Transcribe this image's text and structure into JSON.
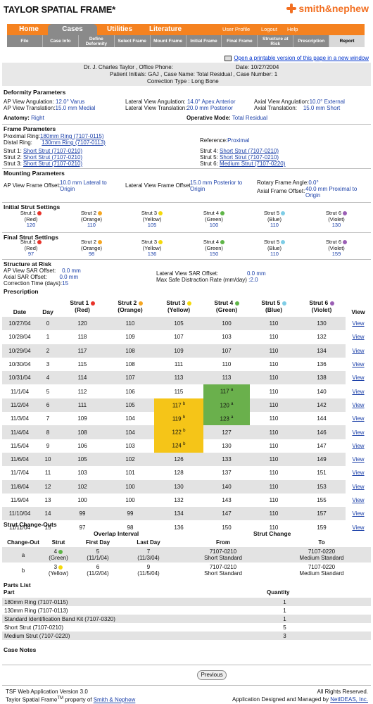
{
  "app_title": "TAYLOR SPATIAL FRAME*",
  "brand": "smith&nephew",
  "nav_tabs": [
    "Home",
    "Cases",
    "Utilities",
    "Literature"
  ],
  "nav_utils": [
    "User Profile",
    "Logout",
    "Help"
  ],
  "subnav": [
    "File",
    "Case Info",
    "Define Deformity",
    "Select Frame",
    "Mount Frame",
    "Initial Frame",
    "Final Frame",
    "Structure at Risk",
    "Prescription",
    "Report"
  ],
  "print_link": "Open a printable version of this page in a new window",
  "patient": {
    "doctor": "Dr. J. Charles Taylor , Office Phone:",
    "date": "Date: 10/27/2004",
    "initials": "Patient Initials:  GAJ , Case Name: Total Residual , Case Number: 1",
    "correction": "Correction Type : Long Bone"
  },
  "deformity": {
    "heading": "Deformity Parameters",
    "ap_ang_label": "AP View Angulation:",
    "ap_ang": "12.0° Varus",
    "lat_ang_label": "Lateral View Angulation:",
    "lat_ang": "14.0° Apex Anterior",
    "ax_ang_label": "Axial View Angulation:",
    "ax_ang": "10.0° External",
    "ap_tr_label": "AP View Translation:",
    "ap_tr": "15.0 mm Medial",
    "lat_tr_label": "Lateral View Translation:",
    "lat_tr": "20.0 mm Posterior",
    "ax_tr_label": "Axial Translation:",
    "ax_tr": "15.0 mm Short",
    "anatomy_label": "Anatomy:",
    "anatomy": "Right",
    "mode_label": "Operative Mode:",
    "mode": "Total Residual"
  },
  "frame": {
    "heading": "Frame Parameters",
    "prox_label": "Proximal Ring:",
    "prox": "180mm Ring (7107-0115)",
    "dist_label": "Distal Ring:",
    "dist": "130mm Ring (7107-0113)",
    "ref_label": "Reference:",
    "ref": "Proximal",
    "struts": [
      {
        "label": "Strut 1:",
        "value": "Short Strut (7107-0210)"
      },
      {
        "label": "Strut 2:",
        "value": "Short Strut (7107-0210)"
      },
      {
        "label": "Strut 3:",
        "value": "Short Strut (7107-0210)"
      },
      {
        "label": "Strut 4:",
        "value": "Short Strut (7107-0210)"
      },
      {
        "label": "Strut 5:",
        "value": "Short Strut (7107-0210)"
      },
      {
        "label": "Strut 6:",
        "value": "Medium Strut (7107-0220)"
      }
    ]
  },
  "mounting": {
    "heading": "Mounting Parameters",
    "ap_label": "AP View Frame Offset:",
    "ap": "10.0 mm Lateral to Origin",
    "lat_label": "Lateral View Frame Offset:",
    "lat": "15.0 mm Posterior to Origin",
    "rot_label": "Rotary Frame Angle:",
    "rot": "0.0°",
    "ax_label": "Axial Frame Offset:",
    "ax": "40.0 mm Proximal to Origin"
  },
  "strut_colors": [
    "#e8332a",
    "#f5a623",
    "#f5d90a",
    "#5fb548",
    "#7fcde6",
    "#9b5fb5"
  ],
  "initial": {
    "heading": "Initial Strut Settings",
    "struts": [
      {
        "name": "Strut 1",
        "color": "(Red)",
        "value": "120"
      },
      {
        "name": "Strut 2",
        "color": "(Orange)",
        "value": "110"
      },
      {
        "name": "Strut 3",
        "color": "(Yellow)",
        "value": "105"
      },
      {
        "name": "Strut 4",
        "color": "(Green)",
        "value": "100"
      },
      {
        "name": "Strut 5",
        "color": "(Blue)",
        "value": "110"
      },
      {
        "name": "Strut 6",
        "color": "(Violet)",
        "value": "130"
      }
    ]
  },
  "final": {
    "heading": "Final Strut Settings",
    "struts": [
      {
        "name": "Strut 1",
        "color": "(Red)",
        "value": "97"
      },
      {
        "name": "Strut 2",
        "color": "(Orange)",
        "value": "98"
      },
      {
        "name": "Strut 3",
        "color": "(Yellow)",
        "value": "136"
      },
      {
        "name": "Strut 4",
        "color": "(Green)",
        "value": "150"
      },
      {
        "name": "Strut 5",
        "color": "(Blue)",
        "value": "110"
      },
      {
        "name": "Strut 6",
        "color": "(Violet)",
        "value": "159"
      }
    ]
  },
  "risk": {
    "heading": "Structure at Risk",
    "ap_label": "AP View SAR Offset:",
    "ap": "0.0 mm",
    "ax_label": "Axial SAR Offset:",
    "ax": "0.0 mm",
    "time_label": "Correction Time (days):",
    "time": "15",
    "lat_label": "Lateral View SAR Offset:",
    "lat": "0.0 mm",
    "rate_label": "Max Safe Distraction Rate (mm/day)",
    "rate": ":2.0"
  },
  "prescription": {
    "heading": "Prescription",
    "headers": [
      "Date",
      "Day",
      "Strut 1",
      "Strut 2",
      "Strut 3",
      "Strut 4",
      "Strut 5",
      "Strut 6",
      "View"
    ],
    "subheaders": [
      "",
      "",
      "(Red)",
      "(Orange)",
      "(Yellow)",
      "(Green)",
      "(Blue)",
      "(Violet)",
      ""
    ],
    "view_label": "View",
    "rows": [
      {
        "date": "10/27/04",
        "day": "0",
        "s": [
          "120",
          "110",
          "105",
          "100",
          "110",
          "130"
        ]
      },
      {
        "date": "10/28/04",
        "day": "1",
        "s": [
          "118",
          "109",
          "107",
          "103",
          "110",
          "132"
        ]
      },
      {
        "date": "10/29/04",
        "day": "2",
        "s": [
          "117",
          "108",
          "109",
          "107",
          "110",
          "134"
        ]
      },
      {
        "date": "10/30/04",
        "day": "3",
        "s": [
          "115",
          "108",
          "111",
          "110",
          "110",
          "136"
        ]
      },
      {
        "date": "10/31/04",
        "day": "4",
        "s": [
          "114",
          "107",
          "113",
          "113",
          "110",
          "138"
        ]
      },
      {
        "date": "11/1/04",
        "day": "5",
        "s": [
          "112",
          "106",
          "115",
          "117",
          "110",
          "140"
        ],
        "hl": {
          "3": [
            "g",
            "a"
          ]
        }
      },
      {
        "date": "11/2/04",
        "day": "6",
        "s": [
          "111",
          "105",
          "117",
          "120",
          "110",
          "142"
        ],
        "hl": {
          "2": [
            "y",
            "b"
          ],
          "3": [
            "g",
            "a"
          ]
        }
      },
      {
        "date": "11/3/04",
        "day": "7",
        "s": [
          "109",
          "104",
          "119",
          "123",
          "110",
          "144"
        ],
        "hl": {
          "2": [
            "y",
            "b"
          ],
          "3": [
            "g",
            "a"
          ]
        }
      },
      {
        "date": "11/4/04",
        "day": "8",
        "s": [
          "108",
          "104",
          "122",
          "127",
          "110",
          "146"
        ],
        "hl": {
          "2": [
            "y",
            "b"
          ]
        }
      },
      {
        "date": "11/5/04",
        "day": "9",
        "s": [
          "106",
          "103",
          "124",
          "130",
          "110",
          "147"
        ],
        "hl": {
          "2": [
            "y",
            "b"
          ]
        }
      },
      {
        "date": "11/6/04",
        "day": "10",
        "s": [
          "105",
          "102",
          "126",
          "133",
          "110",
          "149"
        ]
      },
      {
        "date": "11/7/04",
        "day": "11",
        "s": [
          "103",
          "101",
          "128",
          "137",
          "110",
          "151"
        ]
      },
      {
        "date": "11/8/04",
        "day": "12",
        "s": [
          "102",
          "100",
          "130",
          "140",
          "110",
          "153"
        ]
      },
      {
        "date": "11/9/04",
        "day": "13",
        "s": [
          "100",
          "100",
          "132",
          "143",
          "110",
          "155"
        ]
      },
      {
        "date": "11/10/04",
        "day": "14",
        "s": [
          "99",
          "99",
          "134",
          "147",
          "110",
          "157"
        ]
      },
      {
        "date": "11/11/04",
        "day": "15",
        "s": [
          "97",
          "98",
          "136",
          "150",
          "110",
          "159"
        ]
      }
    ]
  },
  "changeouts": {
    "heading": "Strut Change-Outs",
    "overlap": "Overlap Interval",
    "strut_change": "Strut Change",
    "cols": [
      "Change-Out",
      "Strut",
      "First Day",
      "Last Day",
      "From",
      "To"
    ],
    "rows": [
      {
        "id": "a",
        "strut": "4",
        "color": "(Green)",
        "first": "5",
        "first_d": "(11/1/04)",
        "last": "7",
        "last_d": "(11/3/04)",
        "from": "7107-0210",
        "from_d": "Short Standard",
        "to": "7107-0220",
        "to_d": "Medium Standard"
      },
      {
        "id": "b",
        "strut": "3",
        "color": "(Yellow)",
        "first": "6",
        "first_d": "(11/2/04)",
        "last": "9",
        "last_d": "(11/5/04)",
        "from": "7107-0210",
        "from_d": "Short Standard",
        "to": "7107-0220",
        "to_d": "Medium Standard"
      }
    ]
  },
  "parts": {
    "heading": "Parts List",
    "col_part": "Part",
    "col_qty": "Quantity",
    "rows": [
      {
        "part": "180mm Ring (7107-0115)",
        "qty": "1"
      },
      {
        "part": "130mm Ring (7107-0113)",
        "qty": "1"
      },
      {
        "part": "Standard Identification Band Kit (7107-0320)",
        "qty": "1"
      },
      {
        "part": "Short Strut (7107-0210)",
        "qty": "5"
      },
      {
        "part": "Medium Strut (7107-0220)",
        "qty": "3"
      }
    ]
  },
  "case_notes": "Case Notes",
  "previous": "Previous",
  "footer": {
    "version": "TSF Web Application Version 3.0",
    "rights": "All Rights Reserved.",
    "tm_prefix": "Taylor Spatial Frame",
    "tm": "TM",
    "tm_mid": " property of ",
    "tm_link": "Smith & Nephew",
    "managed": "Application Designed and Managed by ",
    "managed_link": "NetIDEAS, Inc."
  }
}
